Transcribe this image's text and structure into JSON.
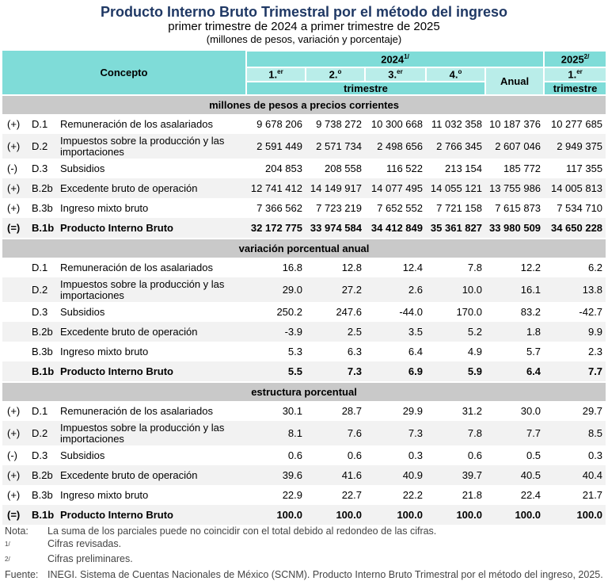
{
  "title": "Producto Interno Bruto Trimestral por el método del ingreso",
  "subtitle": "primer trimestre de 2024 a primer trimestre de 2025",
  "units": "(millones de pesos, variación y porcentaje)",
  "header": {
    "concepto": "Concepto",
    "year2024": "2024",
    "year2024_sup": "1/",
    "year2025": "2025",
    "year2025_sup": "2/",
    "quarters": [
      {
        "n": "1.",
        "s": "er"
      },
      {
        "n": "2.",
        "s": "o"
      },
      {
        "n": "3.",
        "s": "er"
      },
      {
        "n": "4.",
        "s": "o"
      }
    ],
    "anual": "Anual",
    "q2025": {
      "n": "1.",
      "s": "er"
    },
    "trimestre": "trimestre"
  },
  "sections": [
    {
      "title": "millones de pesos a precios corrientes",
      "rows": [
        {
          "sign": "(+)",
          "code": "D.1",
          "concept": "Remuneración de los asalariados",
          "values": [
            "9 678 206",
            "9 738 272",
            "10 300 668",
            "11 032 358",
            "10 187 376",
            "10 277 685"
          ]
        },
        {
          "sign": "(+)",
          "code": "D.2",
          "concept": "Impuestos sobre la producción y las importaciones",
          "values": [
            "2 591 449",
            "2 571 734",
            "2 498 656",
            "2 766 345",
            "2 607 046",
            "2 949 375"
          ]
        },
        {
          "sign": "(-)",
          "code": "D.3",
          "concept": "Subsidios",
          "values": [
            "204 853",
            "208 558",
            "116 522",
            "213 154",
            "185 772",
            "117 355"
          ]
        },
        {
          "sign": "(+)",
          "code": "B.2b",
          "concept": "Excedente bruto de operación",
          "values": [
            "12 741 412",
            "14 149 917",
            "14 077 495",
            "14 055 121",
            "13 755 986",
            "14 005 813"
          ]
        },
        {
          "sign": "(+)",
          "code": "B.3b",
          "concept": "Ingreso mixto bruto",
          "values": [
            "7 366 562",
            "7 723 219",
            "7 652 552",
            "7 721 158",
            "7 615 873",
            "7 534 710"
          ]
        },
        {
          "sign": "(=)",
          "code": "B.1b",
          "concept": "Producto Interno Bruto",
          "values": [
            "32 172 775",
            "33 974 584",
            "34 412 849",
            "35 361 827",
            "33 980 509",
            "34 650 228"
          ],
          "bold": true
        }
      ]
    },
    {
      "title": "variación porcentual anual",
      "rows": [
        {
          "sign": "",
          "code": "D.1",
          "concept": "Remuneración de los asalariados",
          "values": [
            "16.8",
            "12.8",
            "12.4",
            "7.8",
            "12.2",
            "6.2"
          ]
        },
        {
          "sign": "",
          "code": "D.2",
          "concept": "Impuestos sobre la producción y las importaciones",
          "values": [
            "29.0",
            "27.2",
            "2.6",
            "10.0",
            "16.1",
            "13.8"
          ]
        },
        {
          "sign": "",
          "code": "D.3",
          "concept": "Subsidios",
          "values": [
            "250.2",
            "247.6",
            "-44.0",
            "170.0",
            "83.2",
            "-42.7"
          ]
        },
        {
          "sign": "",
          "code": "B.2b",
          "concept": "Excedente bruto de operación",
          "values": [
            "-3.9",
            "2.5",
            "3.5",
            "5.2",
            "1.8",
            "9.9"
          ]
        },
        {
          "sign": "",
          "code": "B.3b",
          "concept": "Ingreso mixto bruto",
          "values": [
            "5.3",
            "6.3",
            "6.4",
            "4.9",
            "5.7",
            "2.3"
          ]
        },
        {
          "sign": "",
          "code": "B.1b",
          "concept": "Producto Interno Bruto",
          "values": [
            "5.5",
            "7.3",
            "6.9",
            "5.9",
            "6.4",
            "7.7"
          ],
          "bold": true
        }
      ]
    },
    {
      "title": "estructura porcentual",
      "rows": [
        {
          "sign": "(+)",
          "code": "D.1",
          "concept": "Remuneración de los asalariados",
          "values": [
            "30.1",
            "28.7",
            "29.9",
            "31.2",
            "30.0",
            "29.7"
          ]
        },
        {
          "sign": "(+)",
          "code": "D.2",
          "concept": "Impuestos sobre la producción y las importaciones",
          "values": [
            "8.1",
            "7.6",
            "7.3",
            "7.8",
            "7.7",
            "8.5"
          ]
        },
        {
          "sign": "(-)",
          "code": "D.3",
          "concept": "Subsidios",
          "values": [
            "0.6",
            "0.6",
            "0.3",
            "0.6",
            "0.5",
            "0.3"
          ]
        },
        {
          "sign": "(+)",
          "code": "B.2b",
          "concept": "Excedente bruto de operación",
          "values": [
            "39.6",
            "41.6",
            "40.9",
            "39.7",
            "40.5",
            "40.4"
          ]
        },
        {
          "sign": "(+)",
          "code": "B.3b",
          "concept": "Ingreso mixto bruto",
          "values": [
            "22.9",
            "22.7",
            "22.2",
            "21.8",
            "22.4",
            "21.7"
          ]
        },
        {
          "sign": "(=)",
          "code": "B.1b",
          "concept": "Producto Interno Bruto",
          "values": [
            "100.0",
            "100.0",
            "100.0",
            "100.0",
            "100.0",
            "100.0"
          ],
          "bold": true
        }
      ]
    }
  ],
  "notes": [
    {
      "key": "Nota:",
      "text": "La suma de los parciales puede no coincidir con el total debido al redondeo de las cifras."
    },
    {
      "key": "1/",
      "text": "Cifras revisadas.",
      "sup": true
    },
    {
      "key": "2/",
      "text": "Cifras preliminares.",
      "sup": true
    },
    {
      "key": "Fuente:",
      "text": "INEGI. Sistema de Cuentas Nacionales de México (SCNM). Producto Interno Bruto Trimestral por el método del ingreso, 2025."
    }
  ]
}
